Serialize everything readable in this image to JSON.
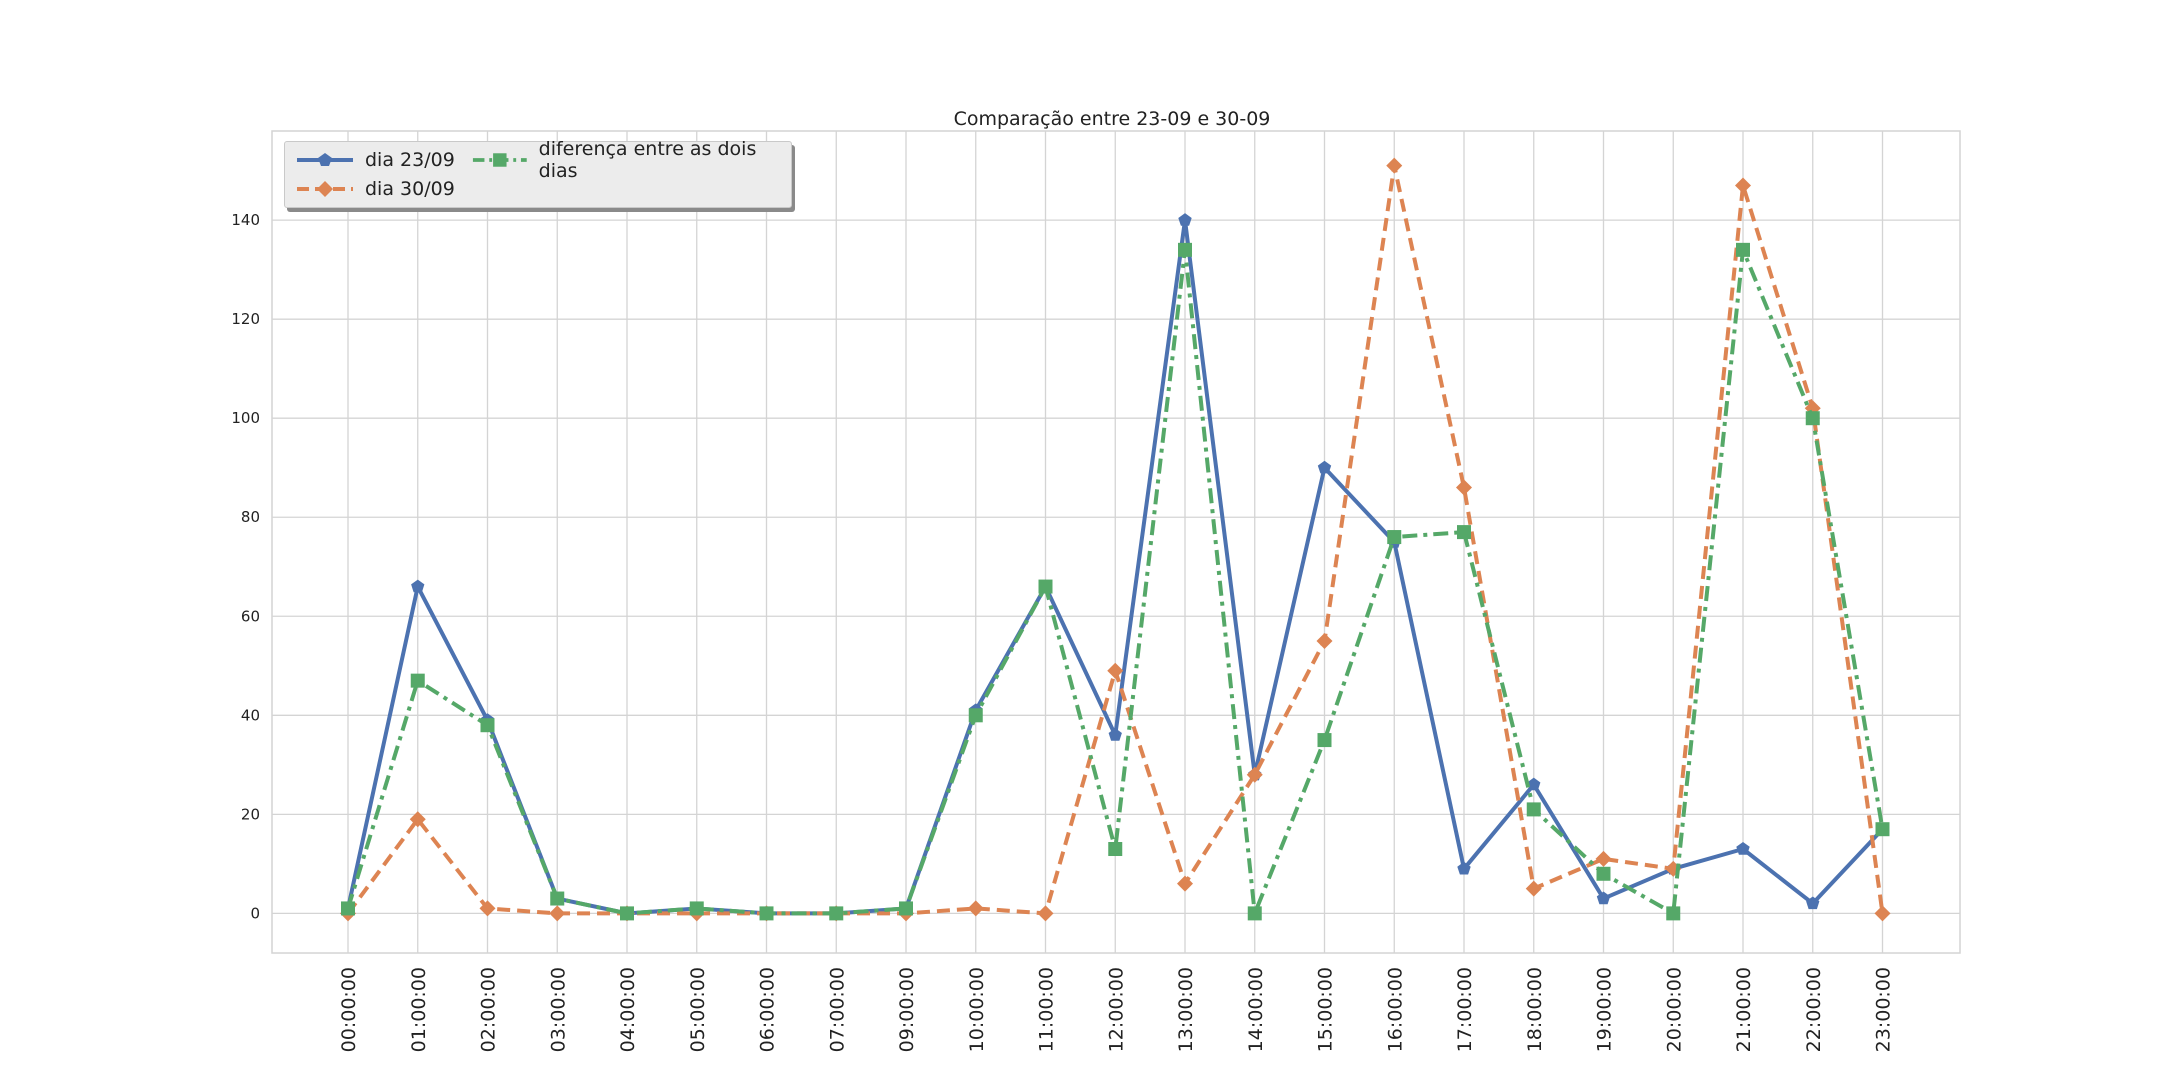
{
  "chart_data": {
    "type": "line",
    "title": "Comparação entre 23-09 e 30-09",
    "xlabel": "",
    "ylabel": "",
    "categories": [
      "00:00:00",
      "01:00:00",
      "02:00:00",
      "03:00:00",
      "04:00:00",
      "05:00:00",
      "06:00:00",
      "07:00:00",
      "09:00:00",
      "10:00:00",
      "11:00:00",
      "12:00:00",
      "13:00:00",
      "14:00:00",
      "15:00:00",
      "16:00:00",
      "17:00:00",
      "18:00:00",
      "19:00:00",
      "20:00:00",
      "21:00:00",
      "22:00:00",
      "23:00:00"
    ],
    "yticks": [
      0,
      20,
      40,
      60,
      80,
      100,
      120,
      140
    ],
    "ylim": [
      -8,
      158
    ],
    "grid": true,
    "legend_position": "top-left",
    "series": [
      {
        "name": "dia 23/09",
        "color": "#4c72b0",
        "line_style": "solid",
        "marker": "pentagon",
        "values": [
          1,
          66,
          39,
          3,
          0,
          1,
          0,
          0,
          1,
          41,
          66,
          36,
          140,
          28,
          90,
          75,
          9,
          26,
          3,
          9,
          13,
          2,
          17
        ]
      },
      {
        "name": "dia 30/09",
        "color": "#dd8452",
        "line_style": "dashed",
        "marker": "diamond",
        "values": [
          0,
          19,
          1,
          0,
          0,
          0,
          0,
          0,
          0,
          1,
          0,
          49,
          6,
          28,
          55,
          151,
          86,
          5,
          11,
          9,
          147,
          102,
          0
        ]
      },
      {
        "name": "diferença entre as dois dias",
        "color": "#55a868",
        "line_style": "dashdot",
        "marker": "square",
        "values": [
          1,
          47,
          38,
          3,
          0,
          1,
          0,
          0,
          1,
          40,
          66,
          13,
          134,
          0,
          35,
          76,
          77,
          21,
          8,
          0,
          134,
          100,
          17
        ]
      }
    ]
  }
}
